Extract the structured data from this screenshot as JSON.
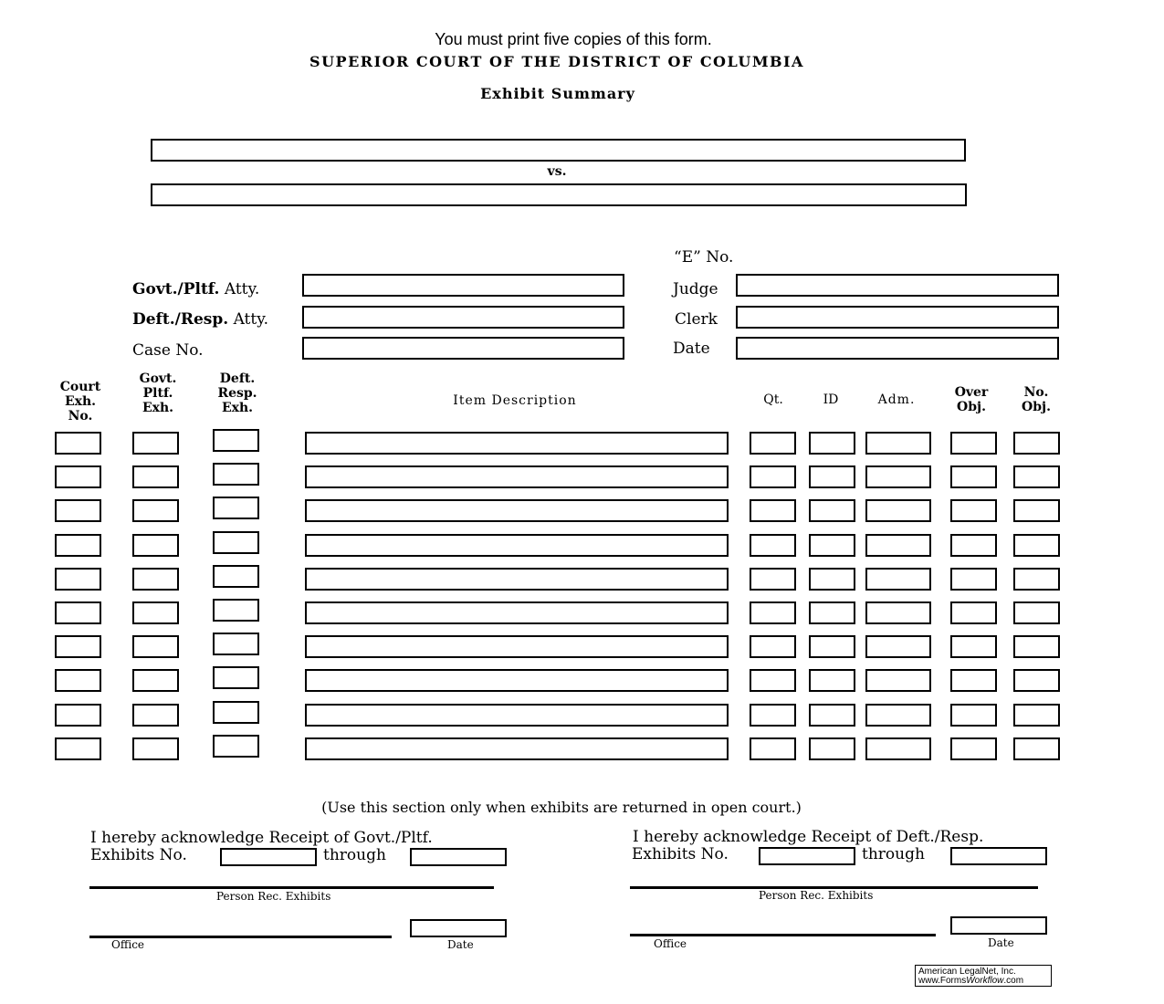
{
  "notice": "You must print five copies of this form.",
  "court": "SUPERIOR COURT OF THE DISTRICT OF COLUMBIA",
  "title": "Exhibit  Summary",
  "vs": "vs.",
  "fields": {
    "e_no": "“E” No.",
    "govt_atty_bold": "Govt./Pltf.",
    "govt_atty": " Atty.",
    "deft_atty_bold": "Deft./Resp.",
    "deft_atty": " Atty.",
    "case_no": "Case  No.",
    "judge": "Judge",
    "clerk": "Clerk",
    "date": "Date"
  },
  "columns": {
    "court": [
      "Court",
      "Exh.",
      "No."
    ],
    "govt": [
      "Govt.",
      "Pltf.",
      "Exh."
    ],
    "deft": [
      "Deft.",
      "Resp.",
      "Exh."
    ],
    "item": "Item  Description",
    "qt": "Qt.",
    "id": "ID",
    "adm": "Adm.",
    "over": [
      "Over",
      "Obj."
    ],
    "noobj": [
      "No.",
      "Obj."
    ]
  },
  "return_section": {
    "note": "(Use  this  section  only  when  exhibits  are  returned  in  open  court.)",
    "left_line1": "I  hereby  acknowledge  Receipt  of  Govt./Pltf.",
    "left_line2": "Exhibits  No.",
    "right_line1": "I  hereby acknowledge Receipt of Deft./Resp.",
    "right_line2": "Exhibits    No.",
    "through": "through",
    "person": "Person    Rec.    Exhibits",
    "office": "Office",
    "date": "Date"
  },
  "footer": {
    "line1": "American LegalNet, Inc.",
    "line2a": "www.Forms",
    "line2b": "Workflow",
    "line2c": ".com"
  }
}
